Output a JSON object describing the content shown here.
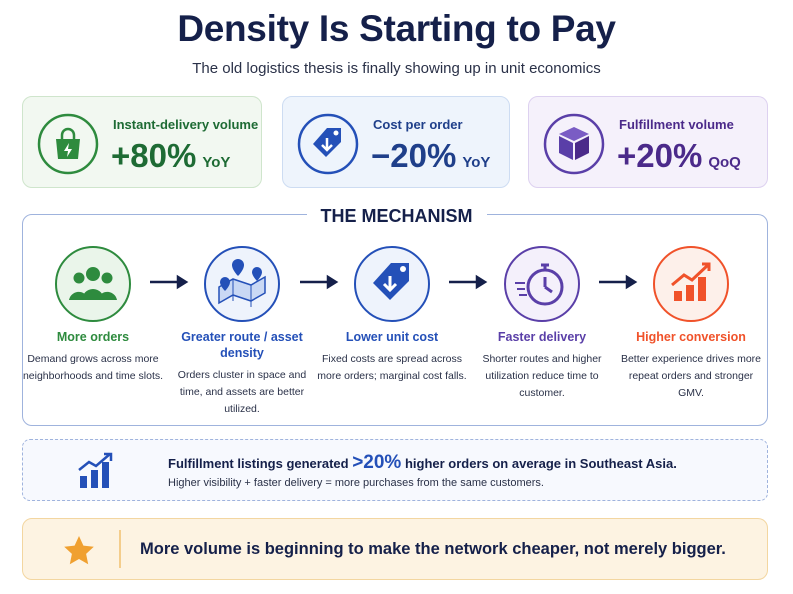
{
  "header": {
    "title": "Density Is Starting to Pay",
    "subtitle": "The old logistics thesis is finally showing up in unit economics"
  },
  "metrics": [
    {
      "label": "Instant-delivery volume",
      "value": "+80%",
      "period": "YoY"
    },
    {
      "label": "Cost per order",
      "value": "−20%",
      "period": "YoY"
    },
    {
      "label": "Fulfillment volume",
      "value": "+20%",
      "period": "QoQ"
    }
  ],
  "mechanism": {
    "title": "THE MECHANISM",
    "steps": [
      {
        "title": "More orders",
        "text": "Demand grows across more neighborhoods and time slots."
      },
      {
        "title": "Greater route / asset density",
        "text": "Orders cluster in space and time, and assets are better utilized."
      },
      {
        "title": "Lower unit cost",
        "text": "Fixed costs are spread across more orders; marginal cost falls."
      },
      {
        "title": "Faster delivery",
        "text": "Shorter routes and higher utilization reduce time to customer."
      },
      {
        "title": "Higher conversion",
        "text": "Better experience drives more repeat orders and stronger GMV."
      }
    ]
  },
  "highlight": {
    "lead": "Fulfillment listings generated",
    "stat": ">20%",
    "rest": "higher orders on average in Southeast Asia.",
    "note": "Higher visibility + faster delivery = more purchases from the same customers."
  },
  "conclusion": "More volume is beginning to make the network cheaper, not merely bigger."
}
